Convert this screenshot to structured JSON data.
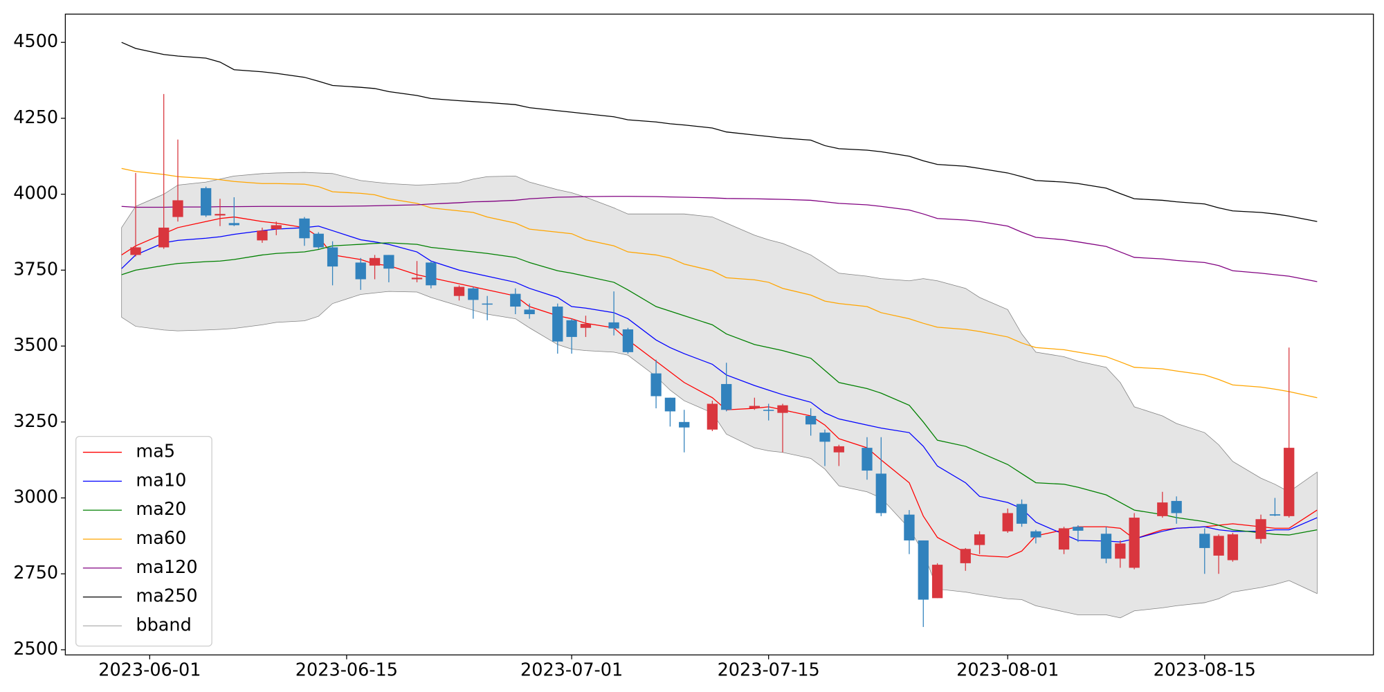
{
  "chart_data": {
    "type": "candlestick",
    "x": [
      "2023-05-30",
      "2023-05-31",
      "2023-06-02",
      "2023-06-03",
      "2023-06-05",
      "2023-06-06",
      "2023-06-07",
      "2023-06-09",
      "2023-06-10",
      "2023-06-12",
      "2023-06-13",
      "2023-06-14",
      "2023-06-16",
      "2023-06-17",
      "2023-06-18",
      "2023-06-20",
      "2023-06-21",
      "2023-06-23",
      "2023-06-24",
      "2023-06-25",
      "2023-06-27",
      "2023-06-28",
      "2023-06-30",
      "2023-07-01",
      "2023-07-02",
      "2023-07-04",
      "2023-07-05",
      "2023-07-07",
      "2023-07-08",
      "2023-07-09",
      "2023-07-11",
      "2023-07-12",
      "2023-07-14",
      "2023-07-15",
      "2023-07-16",
      "2023-07-18",
      "2023-07-19",
      "2023-07-20",
      "2023-07-22",
      "2023-07-23",
      "2023-07-25",
      "2023-07-26",
      "2023-07-27",
      "2023-07-29",
      "2023-07-30",
      "2023-08-01",
      "2023-08-02",
      "2023-08-03",
      "2023-08-05",
      "2023-08-06",
      "2023-08-08",
      "2023-08-09",
      "2023-08-10",
      "2023-08-12",
      "2023-08-13",
      "2023-08-15",
      "2023-08-16",
      "2023-08-17",
      "2023-08-19",
      "2023-08-20",
      "2023-08-21",
      "2023-08-23"
    ],
    "open": [
      null,
      3800,
      3825,
      3925,
      4020,
      3930,
      3905,
      3848,
      3885,
      3920,
      3870,
      3825,
      3775,
      3765,
      3800,
      3720,
      3775,
      3665,
      3690,
      3640,
      3672,
      3620,
      3630,
      3585,
      3560,
      3578,
      3555,
      3410,
      3330,
      3250,
      3225,
      3375,
      3295,
      3290,
      3280,
      3270,
      3215,
      3150,
      3165,
      3080,
      2945,
      2860,
      2670,
      2785,
      2845,
      2890,
      2980,
      2890,
      2830,
      2905,
      2882,
      2800,
      2770,
      2940,
      2990,
      2882,
      2810,
      2795,
      2865,
      2946,
      2940,
      null
    ],
    "high": [
      null,
      4070,
      4330,
      4180,
      4025,
      3985,
      3990,
      3890,
      3910,
      3925,
      3875,
      3845,
      3790,
      3800,
      3800,
      3780,
      3780,
      3700,
      3695,
      3665,
      3690,
      3640,
      3640,
      3590,
      3600,
      3680,
      3560,
      3455,
      3330,
      3290,
      3320,
      3445,
      3330,
      3310,
      3310,
      3295,
      3225,
      3175,
      3200,
      3200,
      2960,
      2860,
      2785,
      2835,
      2890,
      2965,
      2995,
      2895,
      2905,
      2910,
      2905,
      2860,
      2950,
      3020,
      3005,
      2900,
      2880,
      2885,
      2945,
      3000,
      3495,
      null
    ],
    "low": [
      null,
      3795,
      3820,
      3910,
      3925,
      3895,
      3895,
      3840,
      3865,
      3830,
      3820,
      3700,
      3685,
      3720,
      3710,
      3710,
      3690,
      3650,
      3590,
      3585,
      3605,
      3590,
      3475,
      3475,
      3530,
      3535,
      3475,
      3295,
      3235,
      3150,
      3220,
      3285,
      3290,
      3255,
      3150,
      3205,
      3105,
      3105,
      3060,
      2940,
      2815,
      2575,
      2670,
      2760,
      2815,
      2885,
      2905,
      2850,
      2815,
      2855,
      2785,
      2770,
      2765,
      2935,
      2915,
      2750,
      2750,
      2790,
      2850,
      2940,
      2935,
      null
    ],
    "close": [
      null,
      3825,
      3890,
      3980,
      3930,
      3935,
      3898,
      3880,
      3898,
      3855,
      3825,
      3762,
      3720,
      3790,
      3755,
      3725,
      3700,
      3695,
      3652,
      3638,
      3630,
      3605,
      3515,
      3530,
      3573,
      3558,
      3480,
      3335,
      3285,
      3232,
      3310,
      3290,
      3303,
      3288,
      3305,
      3242,
      3185,
      3170,
      3090,
      2950,
      2860,
      2665,
      2780,
      2832,
      2880,
      2950,
      2915,
      2870,
      2900,
      2892,
      2800,
      2850,
      2935,
      2985,
      2950,
      2835,
      2875,
      2880,
      2930,
      2942,
      3165,
      null
    ],
    "up_color": "#d9363e",
    "down_color": "#3182bd",
    "series": [
      {
        "name": "ma5",
        "color": "#ff0000",
        "values": [
          3800,
          3830,
          3870,
          3890,
          3910,
          3920,
          3925,
          3910,
          3905,
          3890,
          3860,
          3800,
          3785,
          3770,
          3765,
          3735,
          3725,
          3705,
          3695,
          3685,
          3665,
          3630,
          3600,
          3590,
          3575,
          3560,
          3520,
          3450,
          3415,
          3380,
          3330,
          3290,
          3295,
          3300,
          3290,
          3270,
          3240,
          3195,
          3165,
          3125,
          3050,
          2940,
          2870,
          2820,
          2810,
          2805,
          2825,
          2875,
          2895,
          2905,
          2905,
          2900,
          2865,
          2895,
          2900,
          2905,
          2910,
          2915,
          2905,
          2900,
          2900,
          2960
        ]
      },
      {
        "name": "ma10",
        "color": "#0000ff",
        "values": [
          3755,
          3800,
          3840,
          3848,
          3855,
          3860,
          3868,
          3880,
          3885,
          3890,
          3895,
          3880,
          3850,
          3843,
          3835,
          3810,
          3780,
          3750,
          3740,
          3730,
          3710,
          3690,
          3660,
          3630,
          3625,
          3610,
          3590,
          3520,
          3495,
          3475,
          3440,
          3405,
          3370,
          3355,
          3340,
          3315,
          3280,
          3260,
          3240,
          3230,
          3215,
          3170,
          3105,
          3050,
          3005,
          2985,
          2965,
          2920,
          2880,
          2860,
          2858,
          2855,
          2865,
          2890,
          2900,
          2905,
          2895,
          2890,
          2890,
          2895,
          2895,
          2935
        ]
      },
      {
        "name": "ma20",
        "color": "#008000",
        "values": [
          3735,
          3750,
          3765,
          3772,
          3778,
          3780,
          3785,
          3800,
          3805,
          3810,
          3818,
          3830,
          3835,
          3838,
          3840,
          3835,
          3825,
          3815,
          3810,
          3805,
          3792,
          3775,
          3748,
          3740,
          3730,
          3710,
          3685,
          3630,
          3615,
          3600,
          3570,
          3540,
          3505,
          3495,
          3485,
          3460,
          3420,
          3380,
          3360,
          3345,
          3305,
          3250,
          3190,
          3170,
          3150,
          3110,
          3080,
          3050,
          3045,
          3035,
          3010,
          2985,
          2960,
          2945,
          2935,
          2922,
          2910,
          2895,
          2885,
          2880,
          2878,
          2895
        ]
      },
      {
        "name": "ma60",
        "color": "#ffa500",
        "values": [
          4085,
          4075,
          4065,
          4058,
          4052,
          4048,
          4042,
          4035,
          4035,
          4033,
          4025,
          4008,
          4003,
          3998,
          3985,
          3970,
          3955,
          3945,
          3940,
          3925,
          3905,
          3885,
          3875,
          3870,
          3850,
          3830,
          3810,
          3800,
          3790,
          3770,
          3748,
          3725,
          3718,
          3710,
          3690,
          3668,
          3648,
          3640,
          3630,
          3610,
          3590,
          3575,
          3562,
          3555,
          3548,
          3530,
          3510,
          3495,
          3488,
          3480,
          3465,
          3448,
          3430,
          3425,
          3418,
          3405,
          3390,
          3372,
          3365,
          3358,
          3350,
          3330
        ]
      },
      {
        "name": "ma120",
        "color": "#800080",
        "values": [
          3960,
          3957,
          3957,
          3958,
          3958,
          3959,
          3959,
          3960,
          3960,
          3960,
          3960,
          3960,
          3961,
          3962,
          3963,
          3965,
          3968,
          3972,
          3975,
          3976,
          3980,
          3985,
          3990,
          3991,
          3992,
          3993,
          3993,
          3992,
          3991,
          3990,
          3988,
          3986,
          3985,
          3984,
          3983,
          3980,
          3975,
          3970,
          3965,
          3960,
          3948,
          3935,
          3920,
          3915,
          3910,
          3895,
          3875,
          3858,
          3850,
          3843,
          3828,
          3810,
          3792,
          3787,
          3782,
          3775,
          3765,
          3748,
          3740,
          3735,
          3730,
          3712
        ]
      },
      {
        "name": "ma250",
        "color": "#000000",
        "values": [
          4500,
          4480,
          4460,
          4455,
          4448,
          4435,
          4410,
          4403,
          4398,
          4385,
          4372,
          4358,
          4352,
          4348,
          4338,
          4325,
          4315,
          4308,
          4305,
          4302,
          4295,
          4285,
          4275,
          4270,
          4265,
          4255,
          4245,
          4238,
          4232,
          4228,
          4218,
          4205,
          4195,
          4190,
          4185,
          4178,
          4160,
          4150,
          4145,
          4140,
          4125,
          4110,
          4098,
          4092,
          4085,
          4070,
          4058,
          4045,
          4040,
          4035,
          4020,
          4002,
          3985,
          3980,
          3975,
          3968,
          3955,
          3945,
          3940,
          3935,
          3928,
          3910
        ]
      }
    ],
    "bband": {
      "name": "bband",
      "color": "#808080",
      "fill": "#e5e5e5",
      "upper": [
        3890,
        3960,
        4000,
        4030,
        4040,
        4050,
        4060,
        4068,
        4070,
        4072,
        4070,
        4068,
        4045,
        4040,
        4035,
        4030,
        4032,
        4038,
        4050,
        4058,
        4060,
        4040,
        4015,
        4005,
        3990,
        3955,
        3935,
        3935,
        3935,
        3935,
        3925,
        3905,
        3865,
        3850,
        3838,
        3800,
        3770,
        3740,
        3730,
        3722,
        3715,
        3722,
        3715,
        3690,
        3660,
        3620,
        3540,
        3480,
        3465,
        3450,
        3430,
        3380,
        3300,
        3270,
        3245,
        3215,
        3175,
        3120,
        3065,
        3045,
        3020,
        3085
      ],
      "lower": [
        3595,
        3565,
        3553,
        3550,
        3553,
        3555,
        3558,
        3570,
        3578,
        3583,
        3598,
        3640,
        3670,
        3675,
        3680,
        3678,
        3660,
        3632,
        3618,
        3605,
        3590,
        3560,
        3505,
        3490,
        3485,
        3480,
        3470,
        3400,
        3355,
        3320,
        3280,
        3210,
        3165,
        3155,
        3150,
        3130,
        3095,
        3040,
        3020,
        3000,
        2900,
        2820,
        2700,
        2690,
        2682,
        2668,
        2665,
        2645,
        2625,
        2615,
        2615,
        2605,
        2628,
        2638,
        2645,
        2655,
        2668,
        2690,
        2705,
        2715,
        2728,
        2685
      ]
    },
    "xlim": [
      "2023-05-26",
      "2023-08-27"
    ],
    "xticks": [
      "2023-06-01",
      "2023-06-15",
      "2023-07-01",
      "2023-07-15",
      "2023-08-01",
      "2023-08-15"
    ],
    "ylim": [
      2483,
      4593
    ],
    "yticks": [
      2500,
      2750,
      3000,
      3250,
      3500,
      3750,
      4000,
      4250,
      4500
    ],
    "legend": "lower left"
  }
}
